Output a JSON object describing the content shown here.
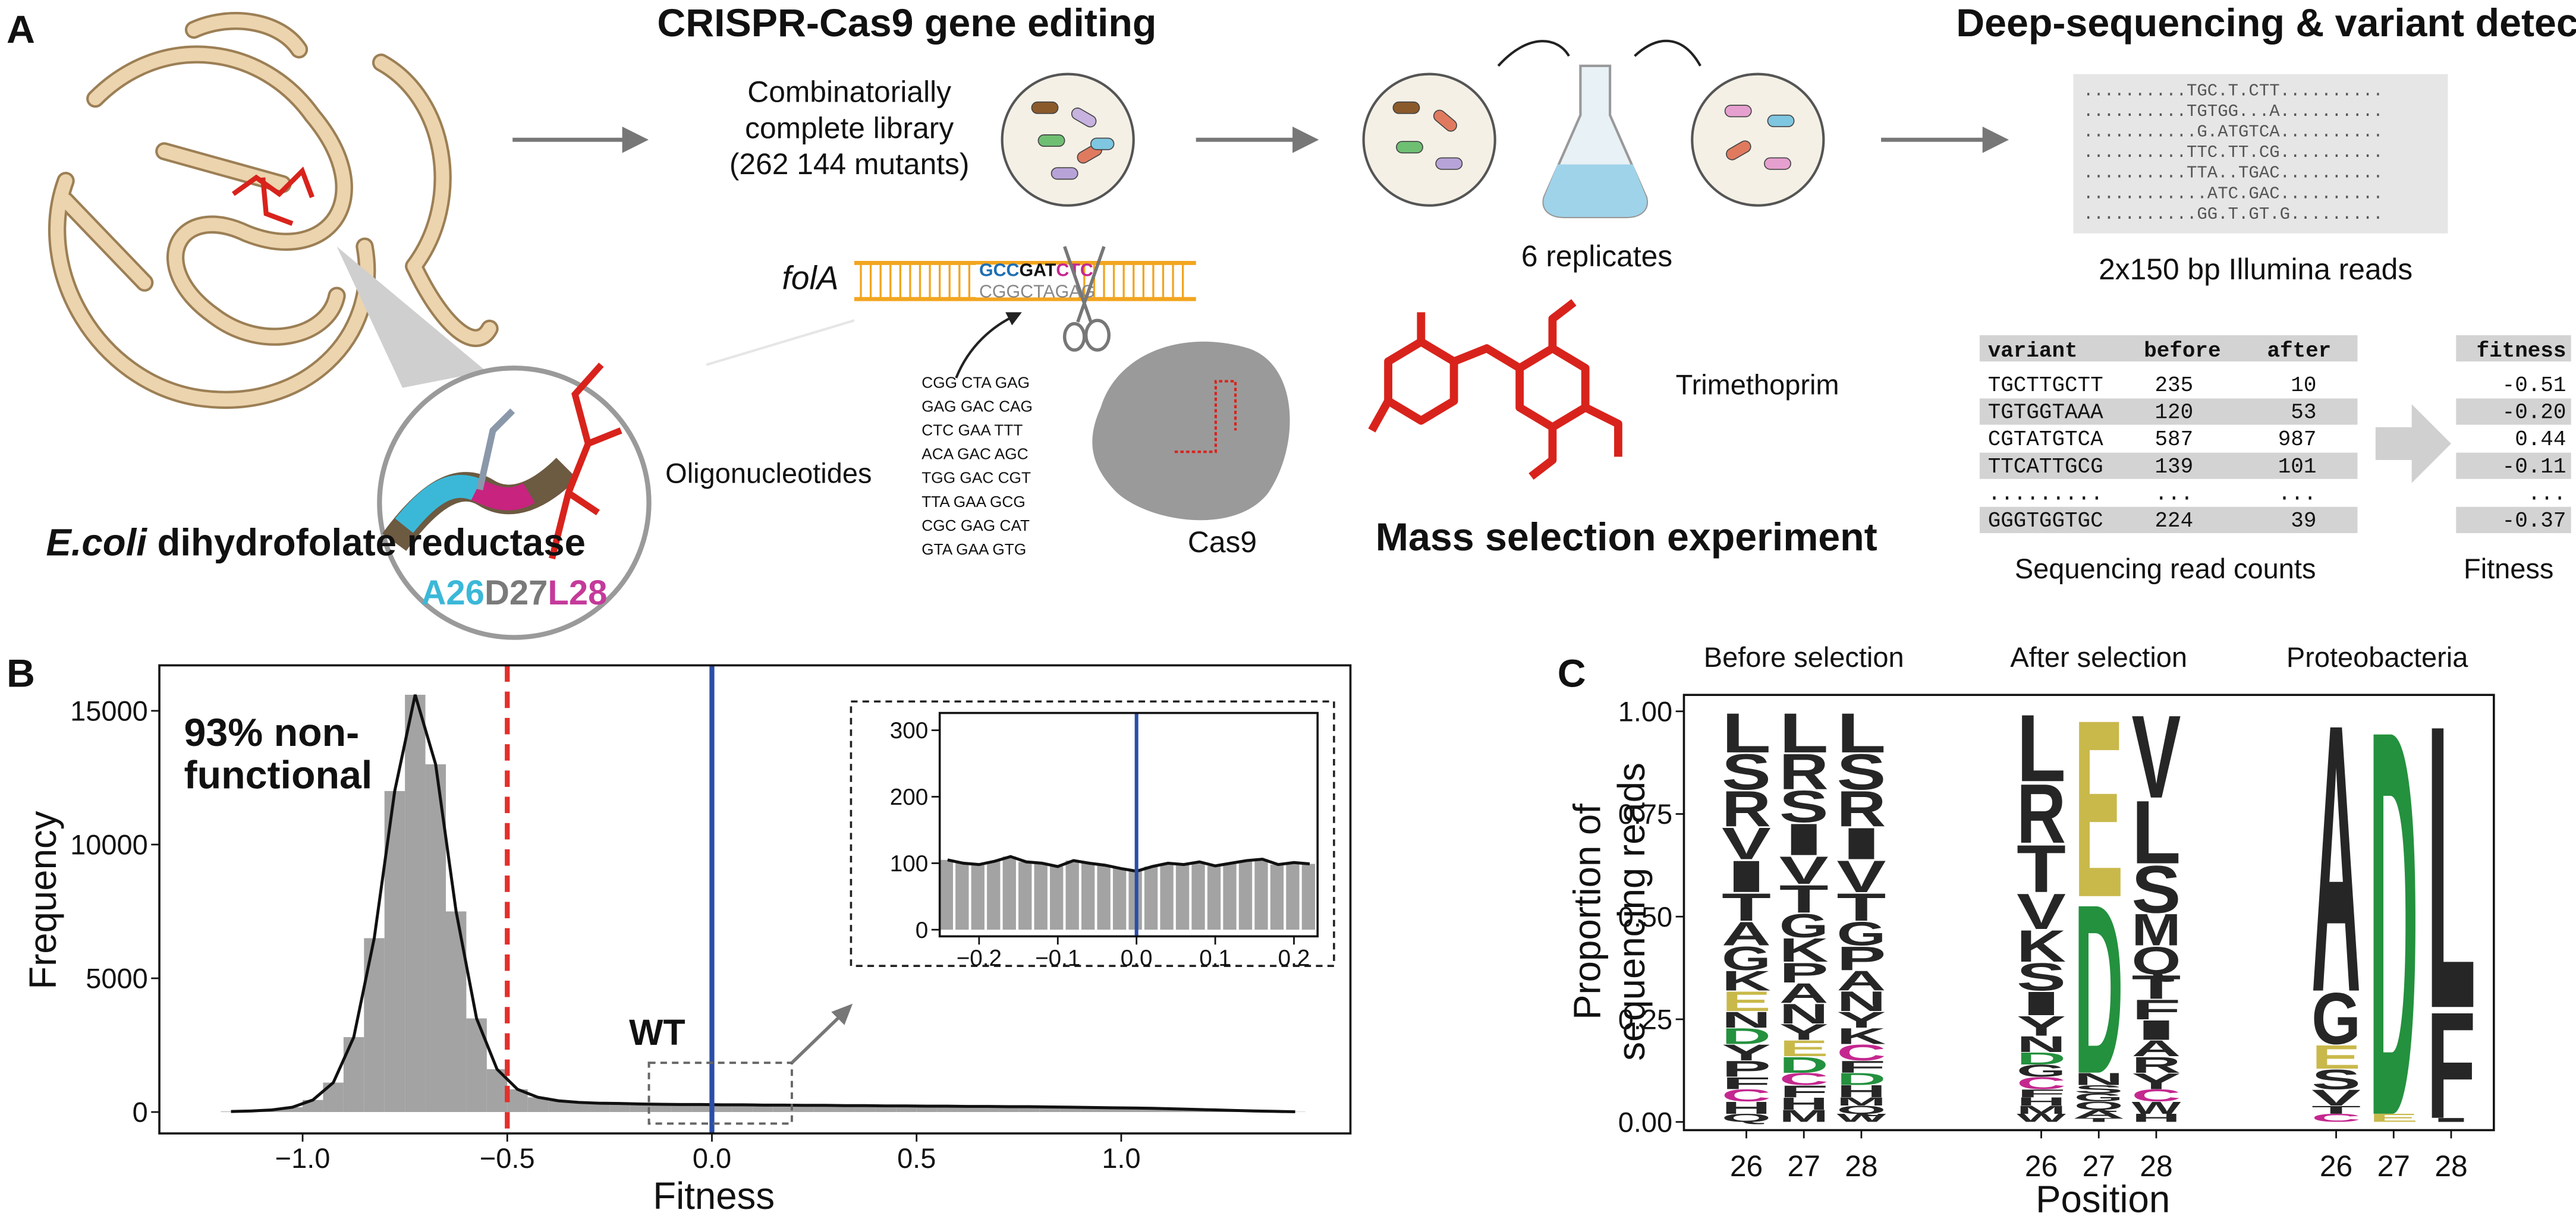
{
  "panel_a": {
    "label": "A",
    "title_editing": "CRISPR-Cas9 gene editing",
    "title_sequencing": "Deep-sequencing & variant detection",
    "title_selection": "Mass selection experiment",
    "protein": {
      "organism": "E.coli",
      "name": "dihydrofolate reductase",
      "residues": [
        "A26",
        "D27",
        "L28"
      ]
    },
    "library": [
      "Combinatorially",
      "complete library",
      "(262 144 mutants)"
    ],
    "gene": "folA",
    "target": {
      "codons": [
        "GCC",
        "GAT",
        "CTC"
      ],
      "complement": "CGGCTAGAG"
    },
    "oligonucleotides": [
      "CGG CTA GAG",
      "GAG GAC CAG",
      "CTC GAA TTT",
      "ACA GAC AGC",
      "TGG GAC CGT",
      "TTA GAA GCG",
      "CGC GAG CAT",
      "GTA GAA GTG"
    ],
    "oligo_label": "Oligonucleotides",
    "cas9": "Cas9",
    "replicates": "6 replicates",
    "drug": "Trimethoprim",
    "reads": [
      "..........TGC.T.CTT..........",
      "..........TGTGG...A..........",
      "...........G.ATGTCA..........",
      "..........TTC.TT.CG..........",
      "..........TTA..TGAC..........",
      "............ATC.GAC..........",
      "...........GG.T.GT.G........."
    ],
    "reads_label": "2x150 bp Illumina reads",
    "counts_table": {
      "header": [
        "variant",
        "before",
        "after"
      ],
      "rows": [
        [
          "TGCTTGCTT",
          "235",
          "10"
        ],
        [
          "TGTGGTAAA",
          "120",
          "53"
        ],
        [
          "CGTATGTCA",
          "587",
          "987"
        ],
        [
          "TTCATTGCG",
          "139",
          "101"
        ],
        [
          ".........",
          "...",
          "..."
        ],
        [
          "GGGTGGTGC",
          "224",
          "39"
        ]
      ]
    },
    "counts_label": "Sequencing read counts",
    "fitness_table": {
      "header": "fitness",
      "rows": [
        "-0.51",
        "-0.20",
        "0.44",
        "-0.11",
        "...",
        "-0.37"
      ]
    },
    "fitness_label": "Fitness"
  },
  "chart_data": [
    {
      "type": "histogram",
      "label": "B",
      "xlabel": "Fitness",
      "ylabel": "Frequency",
      "bins": [
        -1.2,
        -1.15,
        -1.1,
        -1.05,
        -1.0,
        -0.95,
        -0.9,
        -0.85,
        -0.8,
        -0.75,
        -0.7,
        -0.65,
        -0.6,
        -0.55,
        -0.5,
        -0.45,
        -0.4,
        -0.35,
        -0.3,
        -0.25,
        -0.2,
        -0.15,
        -0.1,
        -0.05,
        0,
        0.05,
        0.1,
        0.15,
        0.2,
        0.25,
        0.3,
        0.35,
        0.4,
        0.45,
        0.5,
        0.55,
        0.6,
        0.65,
        0.7,
        0.75,
        0.8,
        0.85,
        0.9,
        0.95,
        1.0,
        1.05,
        1.1,
        1.15,
        1.2,
        1.25,
        1.3,
        1.35,
        1.4,
        1.45
      ],
      "counts": [
        20,
        40,
        80,
        180,
        450,
        1100,
        2800,
        6500,
        12000,
        15600,
        13000,
        7500,
        3500,
        1600,
        850,
        550,
        420,
        360,
        330,
        320,
        300,
        290,
        280,
        280,
        270,
        270,
        260,
        260,
        250,
        250,
        240,
        240,
        230,
        230,
        220,
        220,
        210,
        210,
        200,
        200,
        190,
        180,
        170,
        160,
        150,
        140,
        120,
        100,
        80,
        60,
        40,
        25,
        10
      ],
      "color": "#a3a3a3",
      "line_color": "#111111",
      "xlim": [
        -1.35,
        1.56
      ],
      "ylim": [
        -800,
        16700
      ],
      "xticks": [
        {
          "value": -1.0,
          "label": "−1.0"
        },
        {
          "value": -0.5,
          "label": "−0.5"
        },
        {
          "value": 0,
          "label": "0.0"
        },
        {
          "value": 0.5,
          "label": "0.5"
        },
        {
          "value": 1.0,
          "label": "1.0"
        }
      ],
      "yticks": [
        0,
        5000,
        10000,
        15000
      ],
      "vlines": [
        {
          "x": -0.5,
          "color": "#e3302b",
          "dashed": true
        },
        {
          "x": 0,
          "color": "#2b4ea6",
          "dashed": false
        }
      ],
      "annotation": [
        "93% non-",
        "functional"
      ],
      "wt_label": "WT"
    },
    {
      "type": "histogram",
      "bins": [
        -0.25,
        -0.23,
        -0.21,
        -0.19,
        -0.17,
        -0.15,
        -0.13,
        -0.11,
        -0.09,
        -0.07,
        -0.05,
        -0.03,
        -0.01,
        0.01,
        0.03,
        0.05,
        0.07,
        0.09,
        0.11,
        0.13,
        0.15,
        0.17,
        0.19,
        0.21,
        0.23
      ],
      "counts": [
        105,
        100,
        98,
        103,
        110,
        102,
        100,
        95,
        104,
        100,
        97,
        92,
        88,
        95,
        100,
        98,
        102,
        96,
        100,
        104,
        106,
        98,
        101,
        99
      ],
      "color": "#a3a3a3",
      "line_color": "#111111",
      "xlim": [
        -0.25,
        0.23
      ],
      "ylim": [
        -10,
        326
      ],
      "xticks": [
        {
          "value": -0.2,
          "label": "−0.2"
        },
        {
          "value": -0.1,
          "label": "−0.1"
        },
        {
          "value": 0,
          "label": "0.0"
        },
        {
          "value": 0.1,
          "label": "0.1"
        },
        {
          "value": 0.2,
          "label": "0.2"
        }
      ],
      "yticks": [
        0,
        100,
        200,
        300
      ],
      "vlines": [
        {
          "x": 0,
          "color": "#2b4ea6",
          "dashed": false
        }
      ]
    },
    {
      "type": "logo",
      "label": "C",
      "ylabel": [
        "Proportion of",
        "sequencing reads"
      ],
      "xlabel": "Position",
      "ylim": [
        -0.02,
        1.04
      ],
      "yticks": [
        {
          "value": 0,
          "label": "0.00"
        },
        {
          "value": 0.25,
          "label": "0.25"
        },
        {
          "value": 0.5,
          "label": "0.50"
        },
        {
          "value": 0.75,
          "label": "0.75"
        },
        {
          "value": 1.0,
          "label": "1.00"
        }
      ],
      "categories": [
        "26",
        "27",
        "28"
      ],
      "letter_color": "#262626",
      "letter_colors": {
        "E": "#c9b94b",
        "D": "#24913e",
        "C": "#c4288f"
      },
      "panels": [
        {
          "title": "Before selection",
          "stacks": [
            {
              "letters": [
                "L",
                "S",
                "R",
                "V",
                "I",
                "T",
                "A",
                "G",
                "K",
                "E",
                "N",
                "D",
                "Y",
                "P",
                "F",
                "C",
                "H",
                "Q"
              ],
              "values": [
                0.1,
                0.09,
                0.09,
                0.08,
                0.08,
                0.07,
                0.06,
                0.06,
                0.05,
                0.05,
                0.04,
                0.04,
                0.04,
                0.04,
                0.03,
                0.03,
                0.03,
                0.02
              ]
            },
            {
              "letters": [
                "L",
                "R",
                "S",
                "I",
                "V",
                "T",
                "G",
                "K",
                "P",
                "A",
                "N",
                "Y",
                "E",
                "D",
                "C",
                "F",
                "H",
                "M"
              ],
              "values": [
                0.1,
                0.09,
                0.08,
                0.08,
                0.07,
                0.07,
                0.06,
                0.06,
                0.05,
                0.05,
                0.05,
                0.04,
                0.04,
                0.04,
                0.03,
                0.03,
                0.03,
                0.03
              ]
            },
            {
              "letters": [
                "L",
                "S",
                "R",
                "I",
                "V",
                "T",
                "G",
                "P",
                "A",
                "N",
                "Y",
                "K",
                "C",
                "F",
                "D",
                "H",
                "M",
                "Q",
                "W"
              ],
              "values": [
                0.1,
                0.09,
                0.09,
                0.08,
                0.08,
                0.07,
                0.06,
                0.06,
                0.05,
                0.05,
                0.04,
                0.04,
                0.04,
                0.03,
                0.03,
                0.03,
                0.02,
                0.02,
                0.02
              ]
            }
          ]
        },
        {
          "title": "After selection",
          "stacks": [
            {
              "letters": [
                "L",
                "R",
                "T",
                "V",
                "K",
                "S",
                "I",
                "Y",
                "N",
                "D",
                "G",
                "C",
                "F",
                "H",
                "M",
                "W"
              ],
              "values": [
                0.17,
                0.15,
                0.12,
                0.09,
                0.08,
                0.07,
                0.06,
                0.05,
                0.04,
                0.03,
                0.03,
                0.03,
                0.02,
                0.02,
                0.02,
                0.02
              ]
            },
            {
              "letters": [
                "E",
                "D",
                "N",
                "S",
                "G",
                "Q",
                "A",
                "T"
              ],
              "values": [
                0.45,
                0.43,
                0.03,
                0.02,
                0.02,
                0.02,
                0.02,
                0.01
              ]
            },
            {
              "letters": [
                "V",
                "L",
                "S",
                "M",
                "Q",
                "T",
                "F",
                "I",
                "A",
                "R",
                "Y",
                "C",
                "W",
                "H"
              ],
              "values": [
                0.21,
                0.16,
                0.12,
                0.08,
                0.07,
                0.06,
                0.05,
                0.05,
                0.04,
                0.04,
                0.04,
                0.03,
                0.03,
                0.02
              ]
            }
          ]
        },
        {
          "title": "Proteobacteria",
          "stacks": [
            {
              "letters": [
                "A",
                "G",
                "E",
                "S",
                "V",
                "T",
                "C"
              ],
              "values": [
                0.68,
                0.13,
                0.06,
                0.05,
                0.04,
                0.02,
                0.02
              ]
            },
            {
              "letters": [
                "D",
                "E"
              ],
              "values": [
                0.98,
                0.02
              ]
            },
            {
              "letters": [
                "L",
                "F",
                "I"
              ],
              "values": [
                0.72,
                0.27,
                0.01
              ]
            }
          ]
        }
      ]
    }
  ]
}
